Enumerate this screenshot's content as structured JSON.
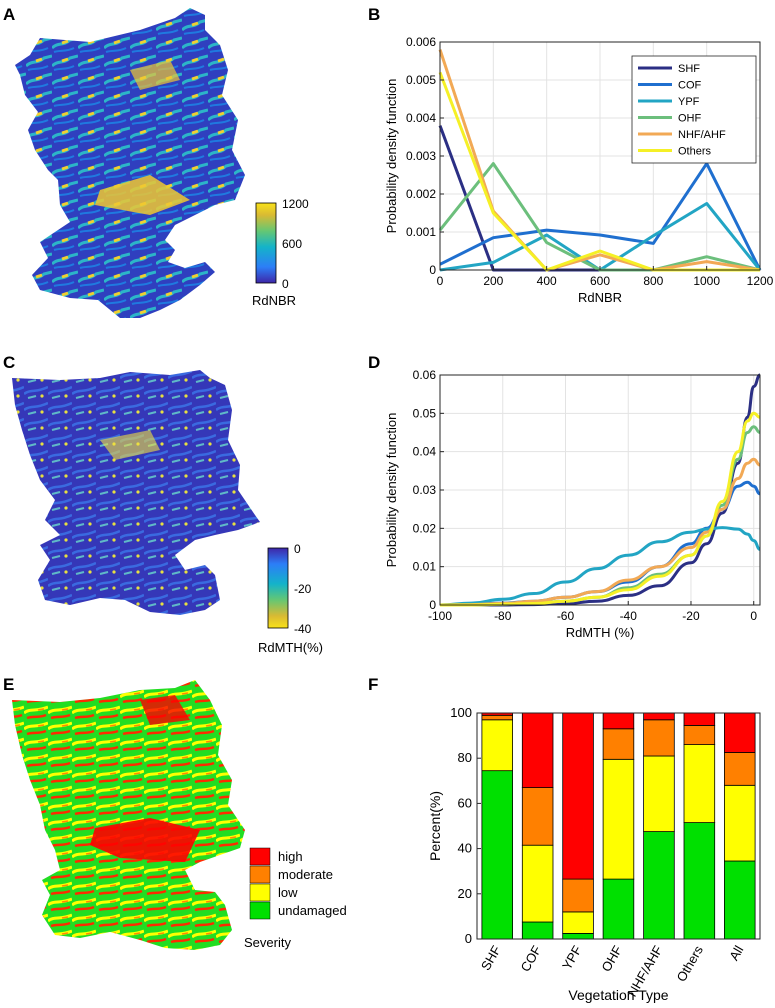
{
  "panels": [
    {
      "letter": "A"
    },
    {
      "letter": "B"
    },
    {
      "letter": "C"
    },
    {
      "letter": "D"
    },
    {
      "letter": "E"
    },
    {
      "letter": "F"
    }
  ],
  "colors": {
    "SHF": "#2b2f84",
    "COF": "#1f6fcf",
    "YPF": "#22a5c4",
    "OHF": "#6cbf7c",
    "NHF_AHF": "#f2a955",
    "Others": "#f5f026",
    "high": "#ff0000",
    "moderate": "#ff8000",
    "low": "#ffff00",
    "undamaged": "#00e000"
  },
  "map_a": {
    "colorbar_label": "RdNBR",
    "colorbar_ticks": [
      "1200",
      "600",
      "0"
    ]
  },
  "map_c": {
    "colorbar_label": "RdMTH(%)",
    "colorbar_ticks": [
      "0",
      "-20",
      "-40"
    ]
  },
  "map_e": {
    "legend_title": "Severity",
    "legend_items": [
      "high",
      "moderate",
      "low",
      "undamaged"
    ]
  },
  "chart_data": [
    {
      "id": "B",
      "type": "line",
      "title": "",
      "xlabel": "RdNBR",
      "ylabel": "Probability density function",
      "xlim": [
        0,
        1200
      ],
      "ylim": [
        0,
        0.006
      ],
      "xticks": [
        0,
        200,
        400,
        600,
        800,
        1000,
        1200
      ],
      "xtick_labels": [
        "0",
        "200",
        "400",
        "600",
        "800",
        "1000",
        "1200"
      ],
      "yticks": [
        0,
        0.001,
        0.002,
        0.003,
        0.004,
        0.005,
        0.006
      ],
      "ytick_labels": [
        "0",
        "0.001",
        "0.002",
        "0.003",
        "0.004",
        "0.005",
        "0.006"
      ],
      "grid": true,
      "legend_position": "top-right",
      "x": [
        0,
        200,
        400,
        600,
        800,
        1000,
        1200
      ],
      "series": [
        {
          "name": "SHF",
          "values": [
            0.0038,
            0.0,
            0.0,
            0.0,
            0.0,
            0.0,
            0.0
          ]
        },
        {
          "name": "COF",
          "values": [
            0.00015,
            0.00085,
            0.00105,
            0.00092,
            0.0007,
            0.0028,
            0.0
          ]
        },
        {
          "name": "YPF",
          "values": [
            0.0,
            0.0002,
            0.00092,
            0.0,
            0.0009,
            0.00175,
            0.0
          ]
        },
        {
          "name": "OHF",
          "values": [
            0.00105,
            0.0028,
            0.00072,
            0.0,
            0.0,
            0.00035,
            0.0
          ]
        },
        {
          "name": "NHF/AHF",
          "values": [
            0.0058,
            0.00155,
            0.0,
            0.0004,
            0.0,
            0.00022,
            0.0
          ]
        },
        {
          "name": "Others",
          "values": [
            0.0052,
            0.0015,
            0.0,
            0.0005,
            0.0,
            0.0,
            0.0
          ]
        }
      ]
    },
    {
      "id": "D",
      "type": "line",
      "title": "",
      "xlabel": "RdMTH (%)",
      "ylabel": "Probability density function",
      "xlim": [
        -100,
        2
      ],
      "ylim": [
        0,
        0.06
      ],
      "xticks": [
        -100,
        -80,
        -60,
        -40,
        -20,
        0
      ],
      "xtick_labels": [
        "-100",
        "-80",
        "-60",
        "-40",
        "-20",
        "0"
      ],
      "yticks": [
        0,
        0.01,
        0.02,
        0.03,
        0.04,
        0.05,
        0.06
      ],
      "ytick_labels": [
        "0",
        "0.01",
        "0.02",
        "0.03",
        "0.04",
        "0.05",
        "0.06"
      ],
      "grid": true,
      "x": [
        -100,
        -90,
        -80,
        -70,
        -60,
        -50,
        -40,
        -30,
        -20,
        -15,
        -10,
        -5,
        -2,
        0,
        2
      ],
      "series": [
        {
          "name": "SHF",
          "values": [
            0,
            0,
            0,
            0.0001,
            0.0004,
            0.001,
            0.0025,
            0.005,
            0.011,
            0.016,
            0.024,
            0.037,
            0.049,
            0.057,
            0.06
          ]
        },
        {
          "name": "COF",
          "values": [
            0,
            0.0002,
            0.0005,
            0.001,
            0.002,
            0.0035,
            0.006,
            0.01,
            0.016,
            0.02,
            0.025,
            0.031,
            0.032,
            0.031,
            0.029
          ]
        },
        {
          "name": "YPF",
          "values": [
            0,
            0.0005,
            0.0015,
            0.003,
            0.006,
            0.0095,
            0.013,
            0.0165,
            0.019,
            0.0198,
            0.0202,
            0.0198,
            0.0185,
            0.0168,
            0.0145
          ]
        },
        {
          "name": "OHF",
          "values": [
            0,
            0,
            0.0002,
            0.0005,
            0.001,
            0.002,
            0.0045,
            0.008,
            0.013,
            0.018,
            0.026,
            0.038,
            0.045,
            0.0465,
            0.045
          ]
        },
        {
          "name": "NHF/AHF",
          "values": [
            0,
            0.0001,
            0.0004,
            0.001,
            0.002,
            0.0035,
            0.0065,
            0.01,
            0.015,
            0.019,
            0.025,
            0.033,
            0.037,
            0.038,
            0.0365
          ]
        },
        {
          "name": "Others",
          "values": [
            0,
            0,
            0.0002,
            0.0004,
            0.001,
            0.002,
            0.004,
            0.0075,
            0.013,
            0.018,
            0.027,
            0.04,
            0.048,
            0.05,
            0.049
          ]
        }
      ]
    },
    {
      "id": "F",
      "type": "bar",
      "stacked": true,
      "title": "",
      "xlabel": "Vegetation Type",
      "ylabel": "Percent(%)",
      "ylim": [
        0,
        100
      ],
      "yticks": [
        0,
        20,
        40,
        60,
        80,
        100
      ],
      "ytick_labels": [
        "0",
        "20",
        "40",
        "60",
        "80",
        "100"
      ],
      "grid": false,
      "categories": [
        "SHF",
        "COF",
        "YPF",
        "OHF",
        "NHF/AHF",
        "Others",
        "All"
      ],
      "series": [
        {
          "name": "undamaged",
          "values": [
            74.5,
            7.5,
            2.5,
            26.5,
            47.5,
            51.5,
            34.5
          ]
        },
        {
          "name": "low",
          "values": [
            22.5,
            34,
            9.5,
            53,
            33.5,
            34.5,
            33.5
          ]
        },
        {
          "name": "moderate",
          "values": [
            2,
            25.5,
            14.5,
            13.5,
            16,
            8.5,
            14.5
          ]
        },
        {
          "name": "high",
          "values": [
            1,
            33,
            73.5,
            7,
            3,
            5.5,
            17.5
          ]
        }
      ]
    }
  ]
}
